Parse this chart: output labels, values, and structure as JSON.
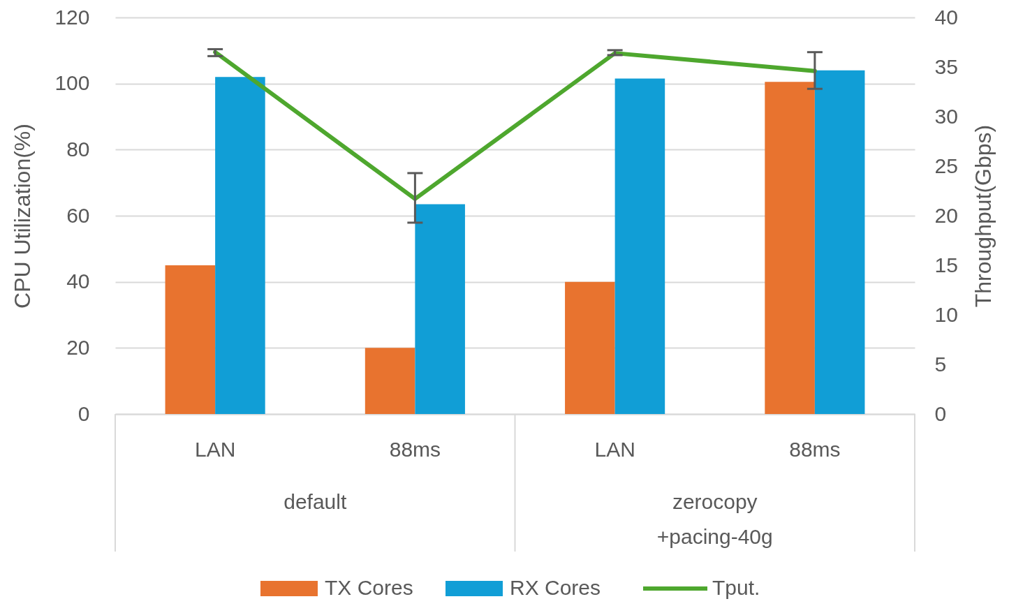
{
  "chart_data": {
    "type": "bar",
    "categories": [
      "LAN",
      "88ms",
      "LAN",
      "88ms"
    ],
    "ylabel": "CPU Utilization(%)",
    "y2label": "Throughput(Gbps)",
    "ylim": [
      0,
      120
    ],
    "yticks": [
      0,
      20,
      40,
      60,
      80,
      100,
      120
    ],
    "y2lim": [
      0,
      40
    ],
    "y2ticks": [
      0,
      5,
      10,
      15,
      20,
      25,
      30,
      35,
      40
    ],
    "series": [
      {
        "name": "TX Cores",
        "color": "#e8732f",
        "values": [
          45,
          20,
          40,
          100.5
        ]
      },
      {
        "name": "RX Cores",
        "color": "#119ed6",
        "values": [
          102,
          63.5,
          101.5,
          104
        ]
      },
      {
        "name": "Tput.",
        "type": "line",
        "axis": "y2",
        "color": "#4ea72e",
        "values": [
          36.5,
          21.7,
          36.4,
          34.6
        ],
        "errors": [
          [
            36.1,
            36.8
          ],
          [
            19.3,
            24.3
          ],
          [
            36.2,
            36.7
          ],
          [
            32.8,
            36.5
          ]
        ]
      }
    ],
    "annotations": [
      "default",
      "zerocopy\n+pacing-40g"
    ],
    "grid": "y",
    "legend": "bottom",
    "marker": "none",
    "line_style": "solid"
  }
}
